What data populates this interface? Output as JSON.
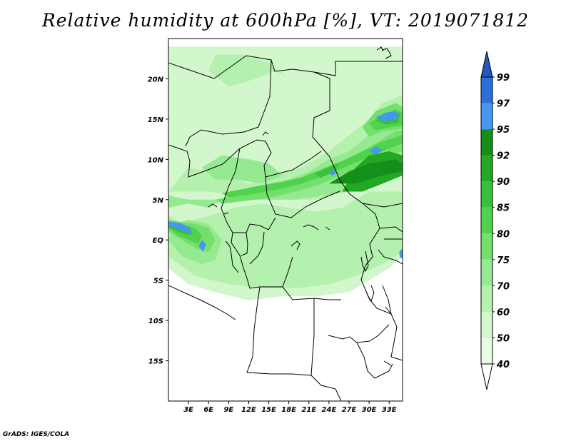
{
  "title": "Relative humidity at 600hPa [%], VT: 2019071812",
  "credit": "GrADS: IGES/COLA",
  "map": {
    "lon_range": [
      0,
      35
    ],
    "lat_range": [
      -20,
      25
    ],
    "lat_tick_labels": [
      {
        "lat": 20,
        "label": "20N"
      },
      {
        "lat": 15,
        "label": "15N"
      },
      {
        "lat": 10,
        "label": "10N"
      },
      {
        "lat": 5,
        "label": "5N"
      },
      {
        "lat": 0,
        "label": "EQ"
      },
      {
        "lat": -5,
        "label": "5S"
      },
      {
        "lat": -10,
        "label": "10S"
      },
      {
        "lat": -15,
        "label": "15S"
      }
    ],
    "lon_tick_labels": [
      {
        "lon": 3,
        "label": "3E"
      },
      {
        "lon": 6,
        "label": "6E"
      },
      {
        "lon": 9,
        "label": "9E"
      },
      {
        "lon": 12,
        "label": "12E"
      },
      {
        "lon": 15,
        "label": "15E"
      },
      {
        "lon": 18,
        "label": "18E"
      },
      {
        "lon": 21,
        "label": "21E"
      },
      {
        "lon": 24,
        "label": "24E"
      },
      {
        "lon": 27,
        "label": "27E"
      },
      {
        "lon": 30,
        "label": "30E"
      },
      {
        "lon": 33,
        "label": "33E"
      }
    ]
  },
  "colorbar": {
    "levels": [
      "40",
      "50",
      "60",
      "70",
      "75",
      "80",
      "85",
      "90",
      "92",
      "95",
      "97",
      "99"
    ],
    "colors": [
      "#ffffff",
      "#e9fce6",
      "#d2f7cc",
      "#b4f0ae",
      "#95e990",
      "#74e06c",
      "#50d24d",
      "#38c038",
      "#23a823",
      "#14901a",
      "#4697ee",
      "#2b6fd8",
      "#2358c0"
    ]
  },
  "fields": {
    "band_levels": [
      "40",
      "50",
      "60",
      "70",
      "75",
      "80",
      "85",
      "90",
      "92",
      "95",
      "97",
      "99"
    ],
    "moist_regions": [
      {
        "level": 2,
        "points": [
          [
            0,
            -3.5
          ],
          [
            3,
            -5.5
          ],
          [
            7,
            -6.5
          ],
          [
            12,
            -7.5
          ],
          [
            17,
            -7.0
          ],
          [
            22,
            -7.0
          ],
          [
            27,
            -6.5
          ],
          [
            30,
            -5.0
          ],
          [
            33,
            -3.5
          ],
          [
            35,
            -2.0
          ],
          [
            35,
            24
          ],
          [
            0,
            24
          ]
        ]
      },
      {
        "level": 3,
        "points": [
          [
            0,
            -2
          ],
          [
            4,
            -4.5
          ],
          [
            9,
            -5.5
          ],
          [
            14,
            -6
          ],
          [
            19,
            -6
          ],
          [
            24,
            -5.5
          ],
          [
            28,
            -4.5
          ],
          [
            32,
            -3
          ],
          [
            35,
            -1.5
          ],
          [
            35,
            6
          ],
          [
            30,
            6
          ],
          [
            26,
            4
          ],
          [
            22,
            3.5
          ],
          [
            18,
            4
          ],
          [
            14,
            4.5
          ],
          [
            10,
            4
          ],
          [
            6,
            3
          ],
          [
            2,
            2
          ],
          [
            0,
            3
          ]
        ]
      },
      {
        "level": 3,
        "points": [
          [
            0,
            6
          ],
          [
            3,
            9
          ],
          [
            8,
            8
          ],
          [
            12,
            7
          ],
          [
            16,
            8
          ],
          [
            20,
            9
          ],
          [
            24,
            11
          ],
          [
            27,
            13
          ],
          [
            30,
            15
          ],
          [
            32,
            17
          ],
          [
            35,
            18
          ],
          [
            35,
            8
          ],
          [
            30,
            7
          ],
          [
            26,
            6
          ],
          [
            22,
            5
          ],
          [
            18,
            5
          ],
          [
            14,
            5.5
          ],
          [
            10,
            5.5
          ],
          [
            6,
            6
          ]
        ]
      },
      {
        "level": 3,
        "points": [
          [
            6,
            21
          ],
          [
            9,
            19
          ],
          [
            13,
            20
          ],
          [
            16,
            21
          ],
          [
            18,
            20
          ],
          [
            15,
            22
          ],
          [
            11,
            23
          ],
          [
            7,
            23
          ]
        ]
      },
      {
        "level": 4,
        "points": [
          [
            0,
            4
          ],
          [
            3,
            4.5
          ],
          [
            6,
            4
          ],
          [
            9,
            5.5
          ],
          [
            12,
            6
          ],
          [
            15,
            7
          ],
          [
            18,
            7.5
          ],
          [
            21,
            8.5
          ],
          [
            24,
            10
          ],
          [
            27,
            11
          ],
          [
            30,
            13
          ],
          [
            33,
            15
          ],
          [
            35,
            16
          ],
          [
            35,
            9
          ],
          [
            31,
            7
          ],
          [
            27,
            6
          ],
          [
            23,
            5.5
          ],
          [
            19,
            5
          ],
          [
            15,
            5
          ],
          [
            11,
            5
          ],
          [
            7,
            5
          ],
          [
            3,
            5
          ],
          [
            0,
            5.5
          ]
        ]
      },
      {
        "level": 4,
        "points": [
          [
            0,
            0
          ],
          [
            2,
            -2
          ],
          [
            5,
            -3
          ],
          [
            7,
            -2.5
          ],
          [
            8,
            0
          ],
          [
            6,
            2
          ],
          [
            3,
            2.5
          ],
          [
            1,
            2
          ]
        ]
      },
      {
        "level": 4,
        "points": [
          [
            5,
            9
          ],
          [
            8,
            10.5
          ],
          [
            12,
            10
          ],
          [
            15,
            9.5
          ],
          [
            17,
            8
          ],
          [
            14,
            7
          ],
          [
            10,
            7.5
          ],
          [
            7,
            7.5
          ]
        ]
      },
      {
        "level": 5,
        "points": [
          [
            0,
            1
          ],
          [
            2,
            0
          ],
          [
            4,
            -1
          ],
          [
            6,
            -1.5
          ],
          [
            7,
            0
          ],
          [
            6,
            1.5
          ],
          [
            4,
            2
          ],
          [
            2,
            2.2
          ],
          [
            0,
            2.5
          ]
        ]
      },
      {
        "level": 5,
        "points": [
          [
            7,
            5
          ],
          [
            10,
            5.5
          ],
          [
            13,
            6.5
          ],
          [
            16,
            7
          ],
          [
            19,
            7.5
          ],
          [
            22,
            8.5
          ],
          [
            25,
            9.5
          ],
          [
            28,
            10.5
          ],
          [
            31,
            12
          ],
          [
            34,
            13.5
          ],
          [
            35,
            13.5
          ],
          [
            35,
            11
          ],
          [
            31,
            10
          ],
          [
            27,
            8.5
          ],
          [
            23,
            7
          ],
          [
            19,
            6
          ],
          [
            15,
            5.2
          ],
          [
            11,
            4.8
          ],
          [
            8,
            4.5
          ]
        ]
      },
      {
        "level": 5,
        "points": [
          [
            29,
            14
          ],
          [
            31,
            16
          ],
          [
            34,
            17
          ],
          [
            35,
            16.5
          ],
          [
            35,
            13.8
          ],
          [
            32,
            13.5
          ],
          [
            30,
            12.8
          ]
        ]
      },
      {
        "level": 6,
        "points": [
          [
            0,
            1.5
          ],
          [
            1.5,
            0.5
          ],
          [
            3,
            0
          ],
          [
            4.5,
            -0.5
          ],
          [
            5,
            0.5
          ],
          [
            4,
            1.5
          ],
          [
            2,
            2
          ],
          [
            0,
            2.2
          ]
        ]
      },
      {
        "level": 6,
        "points": [
          [
            8,
            5.8
          ],
          [
            11,
            6.3
          ],
          [
            14,
            6.8
          ],
          [
            17,
            7.2
          ],
          [
            20,
            7.8
          ],
          [
            23,
            8.8
          ],
          [
            26,
            9.8
          ],
          [
            29,
            11
          ],
          [
            32,
            12.2
          ],
          [
            35,
            13
          ],
          [
            35,
            12
          ],
          [
            32,
            11
          ],
          [
            28,
            9.6
          ],
          [
            24,
            8.2
          ],
          [
            20,
            7
          ],
          [
            16,
            6.2
          ],
          [
            12,
            5.6
          ],
          [
            9,
            5.3
          ]
        ]
      },
      {
        "level": 6,
        "points": [
          [
            30,
            14.5
          ],
          [
            32,
            15.5
          ],
          [
            34,
            16.2
          ],
          [
            35,
            15.8
          ],
          [
            35,
            14.2
          ],
          [
            33,
            14
          ],
          [
            31,
            13.6
          ]
        ]
      },
      {
        "level": 7,
        "points": [
          [
            0,
            1.5
          ],
          [
            1.5,
            1
          ],
          [
            3,
            0.6
          ],
          [
            3.5,
            1.2
          ],
          [
            2,
            1.8
          ],
          [
            0,
            2
          ]
        ]
      },
      {
        "level": 7,
        "points": [
          [
            22,
            8.2
          ],
          [
            24,
            9
          ],
          [
            25.5,
            9.5
          ],
          [
            24.5,
            8.4
          ],
          [
            22.8,
            7.7
          ]
        ]
      },
      {
        "level": 7,
        "points": [
          [
            31,
            14.8
          ],
          [
            33,
            15.6
          ],
          [
            34.6,
            15.8
          ],
          [
            34.4,
            14.6
          ],
          [
            32.6,
            14.3
          ]
        ]
      },
      {
        "level": 8,
        "points": [
          [
            26,
            6
          ],
          [
            28,
            9
          ],
          [
            30,
            10.5
          ],
          [
            33,
            11
          ],
          [
            35,
            10.5
          ],
          [
            35,
            8
          ],
          [
            32,
            7
          ],
          [
            29,
            6
          ]
        ]
      },
      {
        "level": 9,
        "points": [
          [
            24,
            7
          ],
          [
            27,
            8.5
          ],
          [
            30,
            9.5
          ],
          [
            34,
            10
          ],
          [
            35,
            9.5
          ],
          [
            35,
            8.5
          ],
          [
            32,
            8
          ],
          [
            28,
            7
          ]
        ]
      },
      {
        "level": 10,
        "points": [
          [
            0,
            1.8
          ],
          [
            1.5,
            1.3
          ],
          [
            2.8,
            1.0
          ],
          [
            3.6,
            0.5
          ],
          [
            3.2,
            1.5
          ],
          [
            1.8,
            2.1
          ],
          [
            0,
            2.3
          ]
        ]
      },
      {
        "level": 10,
        "points": [
          [
            4.5,
            -0.8
          ],
          [
            5.2,
            -1.5
          ],
          [
            5.6,
            -0.5
          ],
          [
            5,
            0
          ]
        ]
      },
      {
        "level": 10,
        "points": [
          [
            31,
            15.2
          ],
          [
            32.5,
            15.8
          ],
          [
            34,
            16
          ],
          [
            34.5,
            15.3
          ],
          [
            33.4,
            14.8
          ],
          [
            32,
            14.8
          ]
        ]
      },
      {
        "level": 10,
        "points": [
          [
            30,
            11
          ],
          [
            31,
            11.6
          ],
          [
            32,
            11.2
          ],
          [
            31,
            10.6
          ]
        ]
      },
      {
        "level": 10,
        "points": [
          [
            24,
            8.4
          ],
          [
            24.8,
            8.8
          ],
          [
            25,
            8.2
          ],
          [
            24.4,
            8.0
          ]
        ]
      },
      {
        "level": 10,
        "points": [
          [
            34.5,
            -1.5
          ],
          [
            35,
            -1.0
          ],
          [
            35,
            -2.3
          ],
          [
            34.6,
            -2.2
          ]
        ]
      }
    ]
  }
}
